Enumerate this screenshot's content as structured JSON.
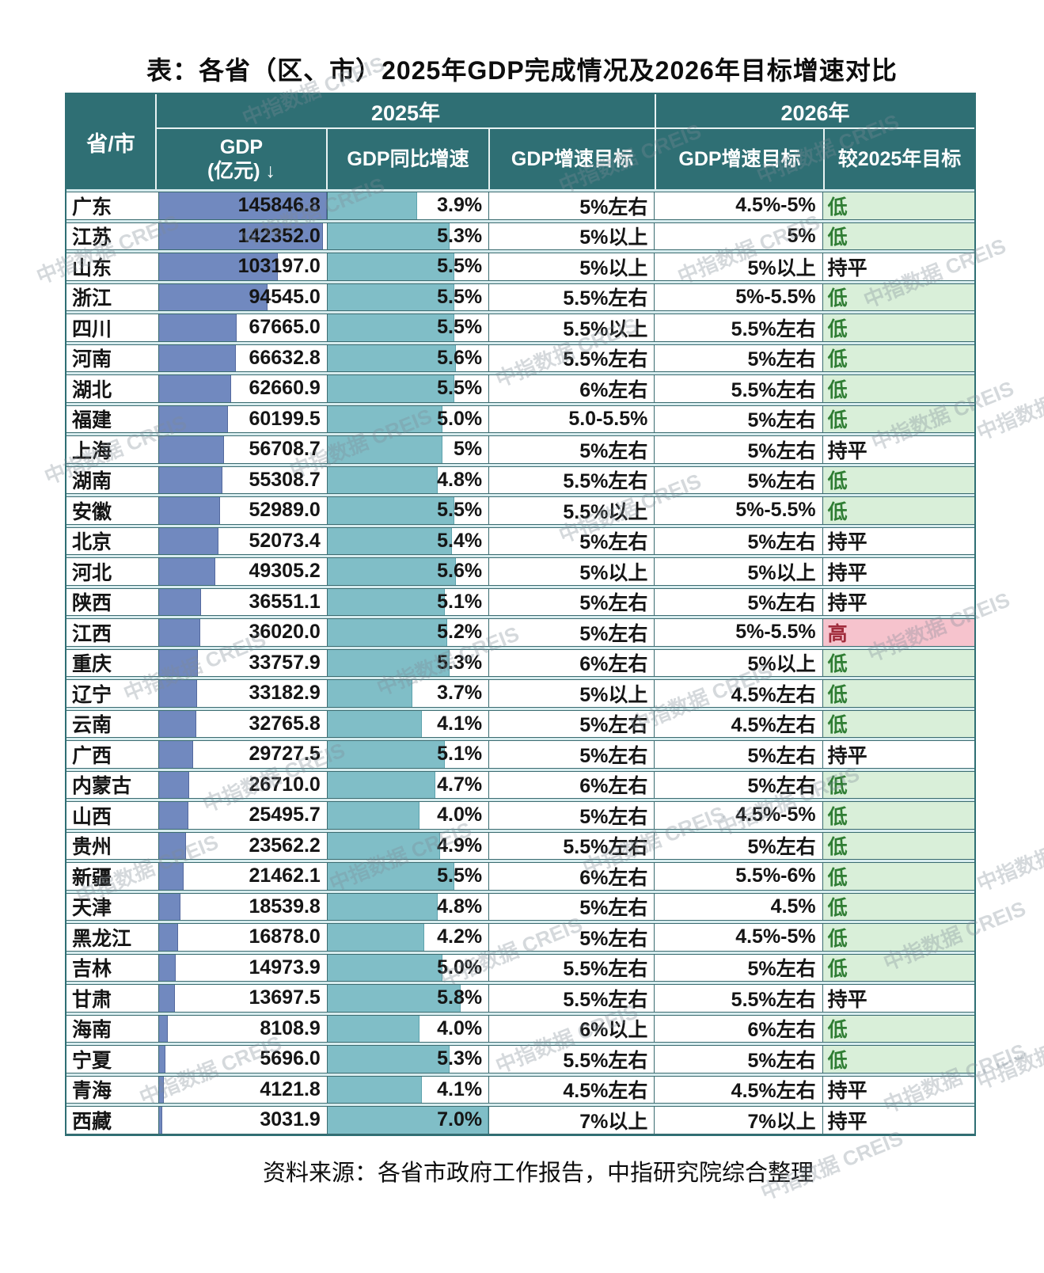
{
  "title": "表：各省（区、市）2025年GDP完成情况及2026年目标增速对比",
  "source": "资料来源：各省市政府工作报告，中指研究院综合整理",
  "watermark_text": "中指数据 CREIS",
  "header": {
    "province": "省/市",
    "group_2025": "2025年",
    "group_2026": "2026年",
    "col_gdp_line1": "GDP",
    "col_gdp_line2": "(亿元)",
    "sort_arrow": "↓",
    "col_yoy": "GDP同比增速",
    "col_target_2025": "GDP增速目标",
    "col_target_2026": "GDP增速目标",
    "col_vs_2025": "较2025年目标"
  },
  "colors": {
    "header_bg": "#2f6f74",
    "gdp_bar": "#7189bf",
    "growth_bar": "#80bec7",
    "low_bg": "#d9efd9",
    "low_text": "#2f7d33",
    "high_bg": "#f6c3cd",
    "high_text": "#a12c3c"
  },
  "gdp_max": 145846.8,
  "growth_max": 7.0,
  "rows": [
    {
      "province": "广东",
      "gdp": "145846.8",
      "gdp_value": 145846.8,
      "yoy": "3.9%",
      "yoy_value": 3.9,
      "target_2025": "5%左右",
      "target_2026": "4.5%-5%",
      "vs_label": "低",
      "vs_type": "low"
    },
    {
      "province": "江苏",
      "gdp": "142352.0",
      "gdp_value": 142352.0,
      "yoy": "5.3%",
      "yoy_value": 5.3,
      "target_2025": "5%以上",
      "target_2026": "5%",
      "vs_label": "低",
      "vs_type": "low"
    },
    {
      "province": "山东",
      "gdp": "103197.0",
      "gdp_value": 103197.0,
      "yoy": "5.5%",
      "yoy_value": 5.5,
      "target_2025": "5%以上",
      "target_2026": "5%以上",
      "vs_label": "持平",
      "vs_type": "flat"
    },
    {
      "province": "浙江",
      "gdp": "94545.0",
      "gdp_value": 94545.0,
      "yoy": "5.5%",
      "yoy_value": 5.5,
      "target_2025": "5.5%左右",
      "target_2026": "5%-5.5%",
      "vs_label": "低",
      "vs_type": "low"
    },
    {
      "province": "四川",
      "gdp": "67665.0",
      "gdp_value": 67665.0,
      "yoy": "5.5%",
      "yoy_value": 5.5,
      "target_2025": "5.5%以上",
      "target_2026": "5.5%左右",
      "vs_label": "低",
      "vs_type": "low"
    },
    {
      "province": "河南",
      "gdp": "66632.8",
      "gdp_value": 66632.8,
      "yoy": "5.6%",
      "yoy_value": 5.6,
      "target_2025": "5.5%左右",
      "target_2026": "5%左右",
      "vs_label": "低",
      "vs_type": "low"
    },
    {
      "province": "湖北",
      "gdp": "62660.9",
      "gdp_value": 62660.9,
      "yoy": "5.5%",
      "yoy_value": 5.5,
      "target_2025": "6%左右",
      "target_2026": "5.5%左右",
      "vs_label": "低",
      "vs_type": "low"
    },
    {
      "province": "福建",
      "gdp": "60199.5",
      "gdp_value": 60199.5,
      "yoy": "5.0%",
      "yoy_value": 5.0,
      "target_2025": "5.0-5.5%",
      "target_2026": "5%左右",
      "vs_label": "低",
      "vs_type": "low"
    },
    {
      "province": "上海",
      "gdp": "56708.7",
      "gdp_value": 56708.7,
      "yoy": "5%",
      "yoy_value": 5.0,
      "target_2025": "5%左右",
      "target_2026": "5%左右",
      "vs_label": "持平",
      "vs_type": "flat"
    },
    {
      "province": "湖南",
      "gdp": "55308.7",
      "gdp_value": 55308.7,
      "yoy": "4.8%",
      "yoy_value": 4.8,
      "target_2025": "5.5%左右",
      "target_2026": "5%左右",
      "vs_label": "低",
      "vs_type": "low"
    },
    {
      "province": "安徽",
      "gdp": "52989.0",
      "gdp_value": 52989.0,
      "yoy": "5.5%",
      "yoy_value": 5.5,
      "target_2025": "5.5%以上",
      "target_2026": "5%-5.5%",
      "vs_label": "低",
      "vs_type": "low"
    },
    {
      "province": "北京",
      "gdp": "52073.4",
      "gdp_value": 52073.4,
      "yoy": "5.4%",
      "yoy_value": 5.4,
      "target_2025": "5%左右",
      "target_2026": "5%左右",
      "vs_label": "持平",
      "vs_type": "flat"
    },
    {
      "province": "河北",
      "gdp": "49305.2",
      "gdp_value": 49305.2,
      "yoy": "5.6%",
      "yoy_value": 5.6,
      "target_2025": "5%以上",
      "target_2026": "5%以上",
      "vs_label": "持平",
      "vs_type": "flat"
    },
    {
      "province": "陕西",
      "gdp": "36551.1",
      "gdp_value": 36551.1,
      "yoy": "5.1%",
      "yoy_value": 5.1,
      "target_2025": "5%左右",
      "target_2026": "5%左右",
      "vs_label": "持平",
      "vs_type": "flat"
    },
    {
      "province": "江西",
      "gdp": "36020.0",
      "gdp_value": 36020.0,
      "yoy": "5.2%",
      "yoy_value": 5.2,
      "target_2025": "5%左右",
      "target_2026": "5%-5.5%",
      "vs_label": "高",
      "vs_type": "high"
    },
    {
      "province": "重庆",
      "gdp": "33757.9",
      "gdp_value": 33757.9,
      "yoy": "5.3%",
      "yoy_value": 5.3,
      "target_2025": "6%左右",
      "target_2026": "5%以上",
      "vs_label": "低",
      "vs_type": "low"
    },
    {
      "province": "辽宁",
      "gdp": "33182.9",
      "gdp_value": 33182.9,
      "yoy": "3.7%",
      "yoy_value": 3.7,
      "target_2025": "5%以上",
      "target_2026": "4.5%左右",
      "vs_label": "低",
      "vs_type": "low"
    },
    {
      "province": "云南",
      "gdp": "32765.8",
      "gdp_value": 32765.8,
      "yoy": "4.1%",
      "yoy_value": 4.1,
      "target_2025": "5%左右",
      "target_2026": "4.5%左右",
      "vs_label": "低",
      "vs_type": "low"
    },
    {
      "province": "广西",
      "gdp": "29727.5",
      "gdp_value": 29727.5,
      "yoy": "5.1%",
      "yoy_value": 5.1,
      "target_2025": "5%左右",
      "target_2026": "5%左右",
      "vs_label": "持平",
      "vs_type": "flat"
    },
    {
      "province": "内蒙古",
      "gdp": "26710.0",
      "gdp_value": 26710.0,
      "yoy": "4.7%",
      "yoy_value": 4.7,
      "target_2025": "6%左右",
      "target_2026": "5%左右",
      "vs_label": "低",
      "vs_type": "low"
    },
    {
      "province": "山西",
      "gdp": "25495.7",
      "gdp_value": 25495.7,
      "yoy": "4.0%",
      "yoy_value": 4.0,
      "target_2025": "5%左右",
      "target_2026": "4.5%-5%",
      "vs_label": "低",
      "vs_type": "low"
    },
    {
      "province": "贵州",
      "gdp": "23562.2",
      "gdp_value": 23562.2,
      "yoy": "4.9%",
      "yoy_value": 4.9,
      "target_2025": "5.5%左右",
      "target_2026": "5%左右",
      "vs_label": "低",
      "vs_type": "low"
    },
    {
      "province": "新疆",
      "gdp": "21462.1",
      "gdp_value": 21462.1,
      "yoy": "5.5%",
      "yoy_value": 5.5,
      "target_2025": "6%左右",
      "target_2026": "5.5%-6%",
      "vs_label": "低",
      "vs_type": "low"
    },
    {
      "province": "天津",
      "gdp": "18539.8",
      "gdp_value": 18539.8,
      "yoy": "4.8%",
      "yoy_value": 4.8,
      "target_2025": "5%左右",
      "target_2026": "4.5%",
      "vs_label": "低",
      "vs_type": "low"
    },
    {
      "province": "黑龙江",
      "gdp": "16878.0",
      "gdp_value": 16878.0,
      "yoy": "4.2%",
      "yoy_value": 4.2,
      "target_2025": "5%左右",
      "target_2026": "4.5%-5%",
      "vs_label": "低",
      "vs_type": "low"
    },
    {
      "province": "吉林",
      "gdp": "14973.9",
      "gdp_value": 14973.9,
      "yoy": "5.0%",
      "yoy_value": 5.0,
      "target_2025": "5.5%左右",
      "target_2026": "5%左右",
      "vs_label": "低",
      "vs_type": "low"
    },
    {
      "province": "甘肃",
      "gdp": "13697.5",
      "gdp_value": 13697.5,
      "yoy": "5.8%",
      "yoy_value": 5.8,
      "target_2025": "5.5%左右",
      "target_2026": "5.5%左右",
      "vs_label": "持平",
      "vs_type": "flat"
    },
    {
      "province": "海南",
      "gdp": "8108.9",
      "gdp_value": 8108.9,
      "yoy": "4.0%",
      "yoy_value": 4.0,
      "target_2025": "6%以上",
      "target_2026": "6%左右",
      "vs_label": "低",
      "vs_type": "low"
    },
    {
      "province": "宁夏",
      "gdp": "5696.0",
      "gdp_value": 5696.0,
      "yoy": "5.3%",
      "yoy_value": 5.3,
      "target_2025": "5.5%左右",
      "target_2026": "5%左右",
      "vs_label": "低",
      "vs_type": "low"
    },
    {
      "province": "青海",
      "gdp": "4121.8",
      "gdp_value": 4121.8,
      "yoy": "4.1%",
      "yoy_value": 4.1,
      "target_2025": "4.5%左右",
      "target_2026": "4.5%左右",
      "vs_label": "持平",
      "vs_type": "flat"
    },
    {
      "province": "西藏",
      "gdp": "3031.9",
      "gdp_value": 3031.9,
      "yoy": "7.0%",
      "yoy_value": 7.0,
      "target_2025": "7%以上",
      "target_2026": "7%以上",
      "vs_label": "持平",
      "vs_type": "flat"
    }
  ]
}
